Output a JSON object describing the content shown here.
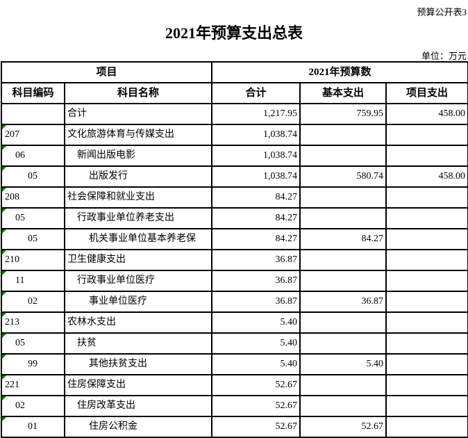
{
  "meta": {
    "sheet_note": "预算公开表3",
    "title": "2021年预算支出总表",
    "unit_note": "单位：万元"
  },
  "table": {
    "header": {
      "group_left": "项目",
      "group_right": "2021年预算数",
      "columns": [
        "科目编码",
        "科目名称",
        "合计",
        "基本支出",
        "项目支出"
      ]
    },
    "rows": [
      {
        "code": "",
        "name": "合计",
        "indent": 0,
        "total": "1,217.95",
        "basic": "759.95",
        "project": "458.00",
        "text_flag": false
      },
      {
        "code": "207",
        "name": "文化旅游体育与传媒支出",
        "indent": 0,
        "total": "1,038.74",
        "basic": "",
        "project": "",
        "text_flag": true
      },
      {
        "code": "06",
        "name": "新闻出版电影",
        "indent": 1,
        "total": "1,038.74",
        "basic": "",
        "project": "",
        "text_flag": true
      },
      {
        "code": "05",
        "name": "出版发行",
        "indent": 2,
        "total": "1,038.74",
        "basic": "580.74",
        "project": "458.00",
        "text_flag": true
      },
      {
        "code": "208",
        "name": "社会保障和就业支出",
        "indent": 0,
        "total": "84.27",
        "basic": "",
        "project": "",
        "text_flag": true
      },
      {
        "code": "05",
        "name": "行政事业单位养老支出",
        "indent": 1,
        "total": "84.27",
        "basic": "",
        "project": "",
        "text_flag": true
      },
      {
        "code": "05",
        "name": "机关事业单位基本养老保",
        "indent": 2,
        "total": "84.27",
        "basic": "84.27",
        "project": "",
        "text_flag": true
      },
      {
        "code": "210",
        "name": "卫生健康支出",
        "indent": 0,
        "total": "36.87",
        "basic": "",
        "project": "",
        "text_flag": true
      },
      {
        "code": "11",
        "name": "行政事业单位医疗",
        "indent": 1,
        "total": "36.87",
        "basic": "",
        "project": "",
        "text_flag": true
      },
      {
        "code": "02",
        "name": "事业单位医疗",
        "indent": 2,
        "total": "36.87",
        "basic": "36.87",
        "project": "",
        "text_flag": true
      },
      {
        "code": "213",
        "name": "农林水支出",
        "indent": 0,
        "total": "5.40",
        "basic": "",
        "project": "",
        "text_flag": true
      },
      {
        "code": "05",
        "name": "扶贫",
        "indent": 1,
        "total": "5.40",
        "basic": "",
        "project": "",
        "text_flag": true
      },
      {
        "code": "99",
        "name": "其他扶贫支出",
        "indent": 2,
        "total": "5.40",
        "basic": "5.40",
        "project": "",
        "text_flag": true
      },
      {
        "code": "221",
        "name": "住房保障支出",
        "indent": 0,
        "total": "52.67",
        "basic": "",
        "project": "",
        "text_flag": true
      },
      {
        "code": "02",
        "name": "住房改革支出",
        "indent": 1,
        "total": "52.67",
        "basic": "",
        "project": "",
        "text_flag": true
      },
      {
        "code": "01",
        "name": "住房公积金",
        "indent": 2,
        "total": "52.67",
        "basic": "52.67",
        "project": "",
        "text_flag": true
      }
    ],
    "colors": {
      "border": "#000000",
      "text_flag_triangle": "#008000",
      "background": "#ffffff"
    }
  }
}
